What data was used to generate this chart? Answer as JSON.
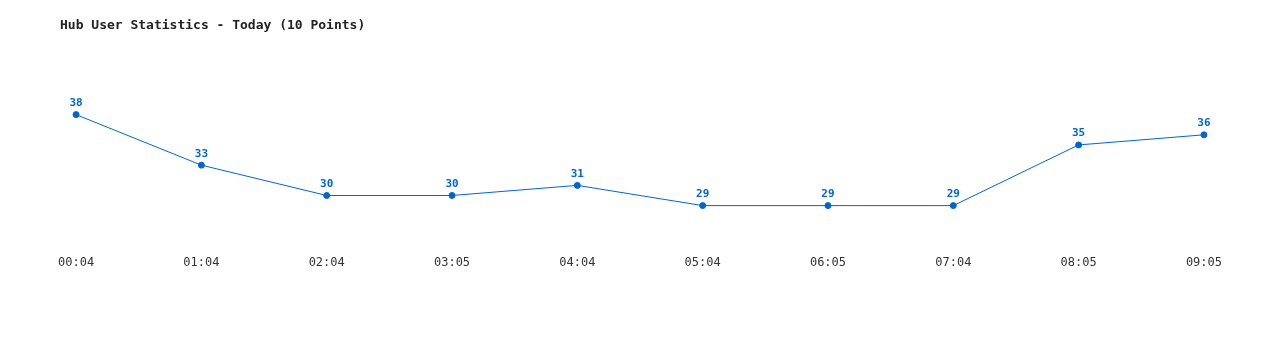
{
  "chart_data": {
    "type": "line",
    "title": "Hub User Statistics - Today (10 Points)",
    "categories": [
      "00:04",
      "01:04",
      "02:04",
      "03:05",
      "04:04",
      "05:04",
      "06:05",
      "07:04",
      "08:05",
      "09:05"
    ],
    "values": [
      38,
      33,
      30,
      30,
      31,
      29,
      29,
      29,
      35,
      36
    ],
    "color": "#0066cc",
    "data_labels": true,
    "marker": "circle",
    "grid": false
  }
}
